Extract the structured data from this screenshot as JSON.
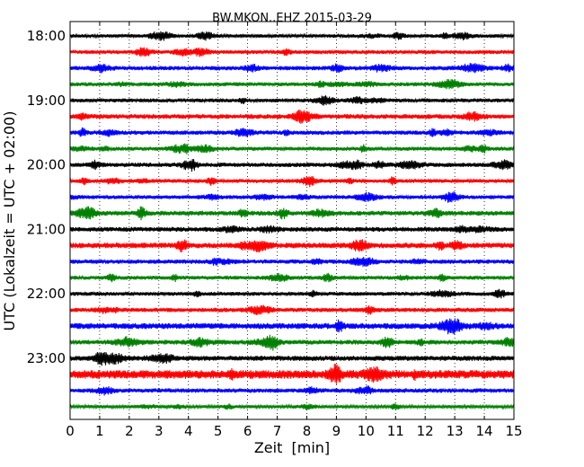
{
  "chart_data": {
    "type": "line",
    "title": "BW.MKON..EHZ 2015-03-29",
    "xlabel": "Zeit  [min]",
    "ylabel": "UTC (Lokalzeit = UTC + 02:00)",
    "xlim": [
      0,
      15
    ],
    "x_ticks": [
      "0",
      "1",
      "2",
      "3",
      "4",
      "5",
      "6",
      "7",
      "8",
      "9",
      "10",
      "11",
      "12",
      "13",
      "14",
      "15"
    ],
    "y_ticks": [
      "18:00",
      "19:00",
      "20:00",
      "21:00",
      "22:00",
      "23:00"
    ],
    "grid": "vertical dotted lines at each minute",
    "trace_interval_minutes": 15,
    "trace_start": "18:00",
    "trace_colors": [
      "#000000",
      "#ff0000",
      "#0000ff",
      "#008000"
    ],
    "trace_count": 24,
    "relative_amplitudes": [
      0.9,
      1.0,
      1.1,
      1.0,
      1.0,
      1.2,
      1.1,
      1.0,
      1.1,
      1.0,
      1.0,
      1.2,
      1.2,
      1.4,
      1.1,
      1.0,
      1.0,
      1.1,
      1.5,
      1.2,
      1.3,
      2.2,
      1.1,
      0.8
    ]
  }
}
